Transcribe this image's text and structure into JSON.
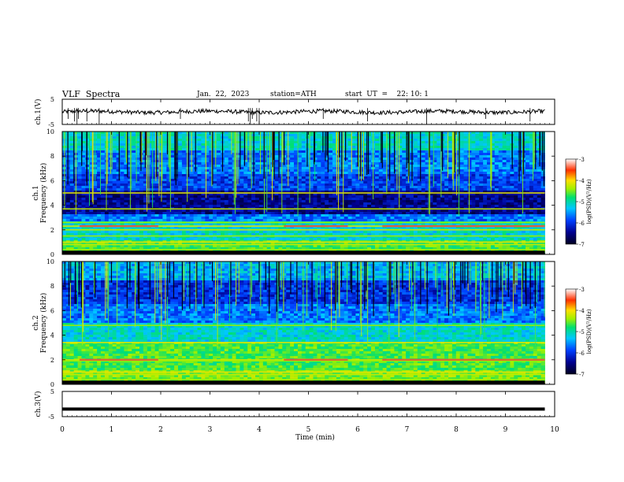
{
  "header": {
    "title": "VLF  Spectra",
    "date": "Jan.  22,  2023",
    "station": "station=ATH",
    "start_ut": "start  UT  =    22: 10: 1"
  },
  "chart_data": [
    {
      "type": "line",
      "id": "ch1-waveform",
      "ylabel": "ch.1(V)",
      "ylim": [
        -5,
        5
      ],
      "yticks": [
        "5",
        "-5"
      ],
      "xlim": [
        0,
        10
      ],
      "series_color": "#000000",
      "approx_level": 0,
      "grid": false
    },
    {
      "type": "heatmap",
      "id": "ch1-spectrogram",
      "ylabel_line1": "ch.1",
      "ylabel_line2": "Frequency (kHz)",
      "ylim": [
        0,
        10
      ],
      "yticks": [
        "0",
        "2",
        "4",
        "6",
        "8",
        "10"
      ],
      "xlim": [
        0,
        10
      ],
      "active_until_min": 9.8,
      "colorbar": {
        "label": "log(PSD)(V²/Hz)",
        "ticks": [
          "-3",
          "-4",
          "-5",
          "-6",
          "-7"
        ],
        "range": [
          -7,
          -3
        ]
      },
      "bright_bands_khz": [
        0.4,
        0.8,
        1.0,
        1.5,
        2.0,
        2.3,
        2.6,
        3.7,
        5.0
      ],
      "colormap": [
        "#000020",
        "#000090",
        "#0040ff",
        "#00c8ff",
        "#00e070",
        "#a0f000",
        "#ffe000",
        "#ff3000",
        "#ffffff"
      ]
    },
    {
      "type": "heatmap",
      "id": "ch2-spectrogram",
      "ylabel_line1": "ch.2",
      "ylabel_line2": "Frequency (kHz)",
      "ylim": [
        0,
        10
      ],
      "yticks": [
        "0",
        "2",
        "4",
        "6",
        "8",
        "10"
      ],
      "xlim": [
        0,
        10
      ],
      "active_until_min": 9.8,
      "colorbar": {
        "label": "log(PSD)(V²/Hz)",
        "ticks": [
          "-3",
          "-4",
          "-5",
          "-6",
          "-7"
        ],
        "range": [
          -7,
          -3
        ]
      },
      "bright_bands_khz": [
        0.4,
        0.8,
        1.0,
        1.9,
        2.0,
        3.4,
        4.8
      ],
      "colormap": [
        "#000020",
        "#000090",
        "#0040ff",
        "#00c8ff",
        "#00e070",
        "#a0f000",
        "#ffe000",
        "#ff3000",
        "#ffffff"
      ]
    },
    {
      "type": "line",
      "id": "ch3-waveform",
      "ylabel": "ch.3(V)",
      "ylim": [
        -5,
        5
      ],
      "yticks": [
        "5",
        "-5"
      ],
      "xlim": [
        0,
        10
      ],
      "series_color": "#000000",
      "approx_level": -2,
      "grid": false
    }
  ],
  "xaxis": {
    "label": "Time  (min)",
    "ticks": [
      "0",
      "1",
      "2",
      "3",
      "4",
      "5",
      "6",
      "7",
      "8",
      "9",
      "10"
    ]
  }
}
